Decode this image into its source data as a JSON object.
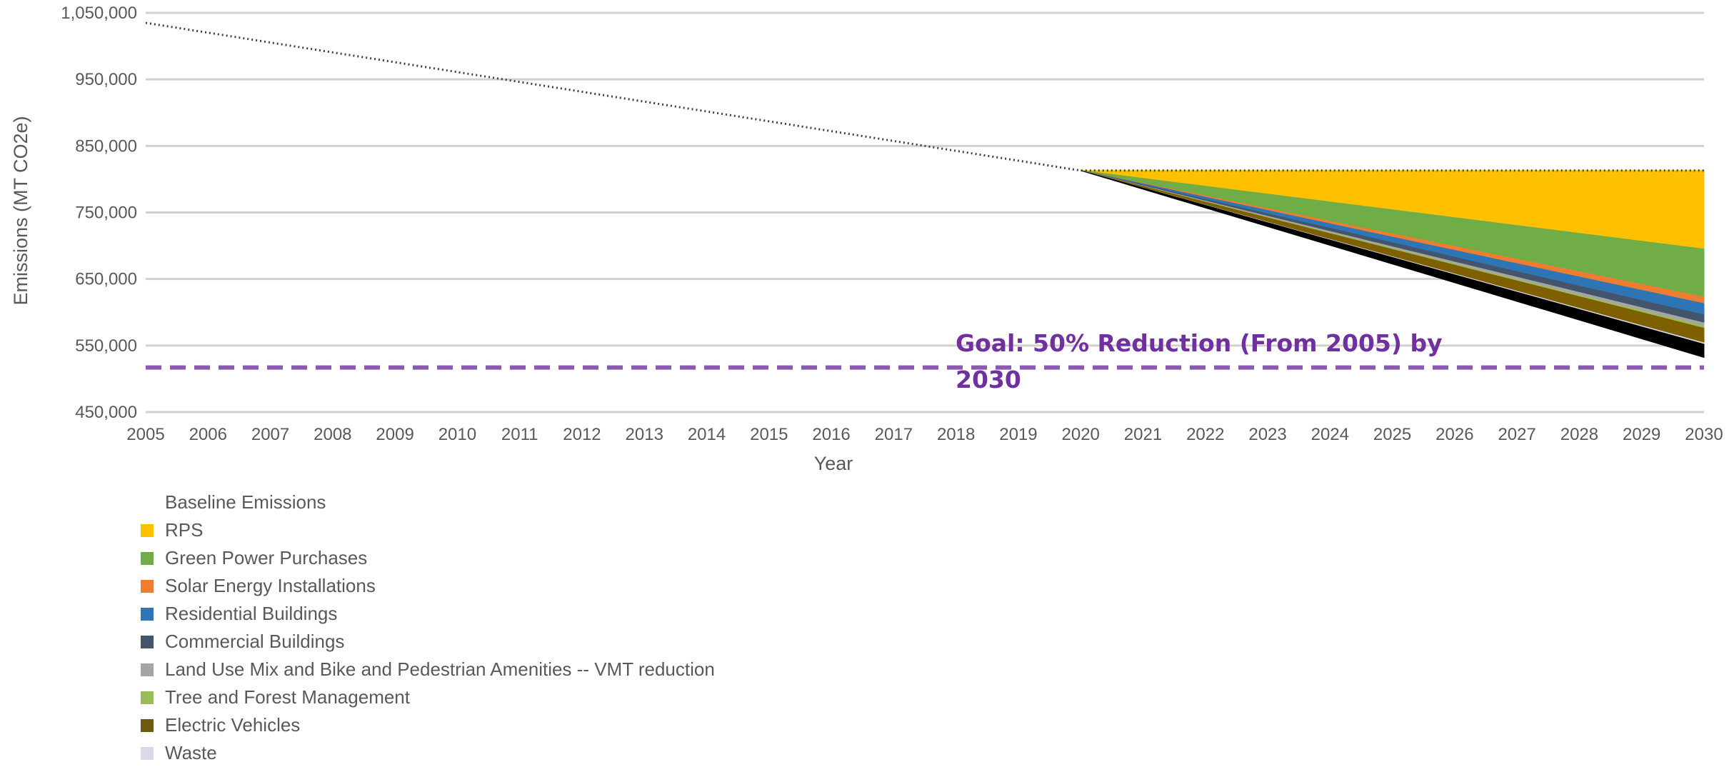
{
  "chart_data": {
    "type": "area",
    "title": "",
    "xlabel": "Year",
    "ylabel": "Emissions (MT CO2e)",
    "ylim": [
      450000,
      1050000
    ],
    "yticks": [
      "450,000",
      "550,000",
      "650,000",
      "750,000",
      "850,000",
      "950,000",
      "1,050,000"
    ],
    "ytick_values": [
      450000,
      550000,
      650000,
      750000,
      850000,
      950000,
      1050000
    ],
    "x": [
      2005,
      2006,
      2007,
      2008,
      2009,
      2010,
      2011,
      2012,
      2013,
      2014,
      2015,
      2016,
      2017,
      2018,
      2019,
      2020,
      2021,
      2022,
      2023,
      2024,
      2025,
      2026,
      2027,
      2028,
      2029,
      2030
    ],
    "xticks": [
      "2005",
      "2006",
      "2007",
      "2008",
      "2009",
      "2010",
      "2011",
      "2012",
      "2013",
      "2014",
      "2015",
      "2016",
      "2017",
      "2018",
      "2019",
      "2020",
      "2021",
      "2022",
      "2023",
      "2024",
      "2025",
      "2026",
      "2027",
      "2028",
      "2029",
      "2030"
    ],
    "grid": true,
    "legend_position": "bottom-left",
    "baseline": {
      "name": "Baseline Emissions",
      "style": "dotted",
      "color": "#404040",
      "points": [
        [
          2005,
          1035000
        ],
        [
          2020,
          813000
        ],
        [
          2030,
          813000
        ]
      ]
    },
    "stack_start_year": 2020,
    "stack_start_value": 813000,
    "series": [
      {
        "name": "RPS",
        "color": "#ffc000",
        "reduction_2030": 118000
      },
      {
        "name": "Green Power Purchases",
        "color": "#70ad47",
        "reduction_2030": 72000
      },
      {
        "name": "Solar Energy Installations",
        "color": "#ed7d31",
        "reduction_2030": 10000
      },
      {
        "name": "Residential Buildings",
        "color": "#2e75b6",
        "reduction_2030": 17000
      },
      {
        "name": "Commercial Buildings",
        "color": "#44546a",
        "reduction_2030": 12000
      },
      {
        "name": "Land Use Mix and Bike and Pedestrian Amenities -- VMT reduction",
        "color": "#a5a5a5",
        "reduction_2030": 5000
      },
      {
        "name": "Tree and Forest Management",
        "color": "#9bbb59",
        "reduction_2030": 3000
      },
      {
        "name": "Electric Vehicles",
        "color": "#7f6000",
        "reduction_2030": 22000
      },
      {
        "name": "Waste",
        "color": "#d9d9e8",
        "reduction_2030": 2000
      },
      {
        "name": "",
        "color": "#000000",
        "reduction_2030": 20000
      }
    ],
    "goal": {
      "value": 517000,
      "color": "#7030a0",
      "label_line1": "Goal: 50% Reduction (From 2005) by",
      "label_line2": "2030"
    }
  },
  "legend": {
    "items": [
      {
        "label": "Baseline Emissions",
        "color": ""
      },
      {
        "label": "RPS",
        "color": "#ffc000"
      },
      {
        "label": "Green Power Purchases",
        "color": "#70ad47"
      },
      {
        "label": "Solar Energy Installations",
        "color": "#ed7d31"
      },
      {
        "label": "Residential Buildings",
        "color": "#2e75b6"
      },
      {
        "label": "Commercial Buildings",
        "color": "#44546a"
      },
      {
        "label": "Land Use Mix and Bike and Pedestrian Amenities -- VMT reduction",
        "color": "#a5a5a5"
      },
      {
        "label": "Tree and Forest Management",
        "color": "#9bbb59"
      },
      {
        "label": "Electric Vehicles",
        "color": "#6b5a10"
      },
      {
        "label": "Waste",
        "color": "#d9d9e8"
      }
    ]
  }
}
